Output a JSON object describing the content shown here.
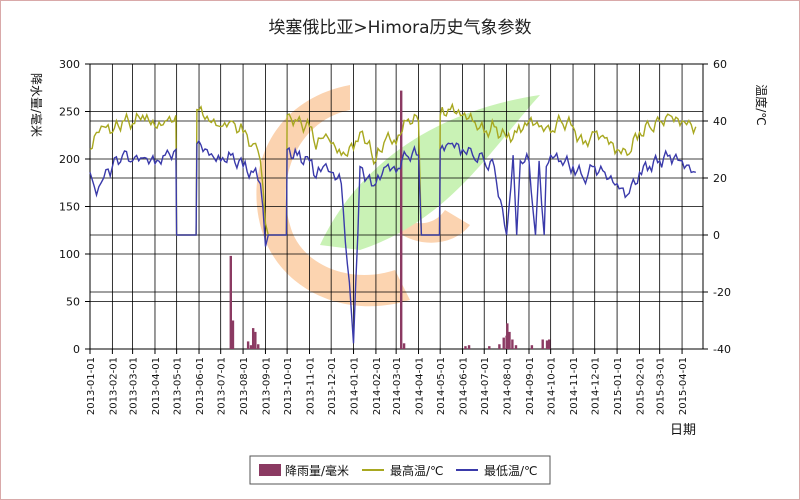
{
  "chart_data": {
    "type": "line",
    "title": "埃塞俄比亚>Himora历史气象参数",
    "xlabel": "日期",
    "ylabel_left": "降水量/毫米",
    "ylabel_right": "温度/℃",
    "ylim_left": [
      0,
      300
    ],
    "ylim_right": [
      -40,
      60
    ],
    "yticks_left": [
      0,
      50,
      100,
      150,
      200,
      250,
      300
    ],
    "yticks_right": [
      -40,
      -20,
      0,
      20,
      40,
      60
    ],
    "grid": true,
    "legend_position": "bottom",
    "x_ticks": [
      "2013-01-01",
      "2013-02-01",
      "2013-03-01",
      "2013-04-01",
      "2013-05-01",
      "2013-06-01",
      "2013-07-01",
      "2013-08-01",
      "2013-09-01",
      "2013-10-01",
      "2013-11-01",
      "2013-12-01",
      "2014-01-01",
      "2014-02-01",
      "2014-03-01",
      "2014-04-01",
      "2014-05-01",
      "2014-06-01",
      "2014-07-01",
      "2014-08-01",
      "2014-09-01",
      "2014-10-01",
      "2014-11-01",
      "2014-12-01",
      "2015-01-01",
      "2015-02-01",
      "2015-03-01",
      "2015-04-01"
    ],
    "series": [
      {
        "name": "降雨量/毫米",
        "axis": "left",
        "color": "#8b3a62",
        "kind": "bar",
        "points": [
          [
            "2013-07-15",
            98
          ],
          [
            "2013-07-18",
            30
          ],
          [
            "2013-08-08",
            8
          ],
          [
            "2013-08-12",
            4
          ],
          [
            "2013-08-15",
            22
          ],
          [
            "2013-08-18",
            18
          ],
          [
            "2013-08-22",
            5
          ],
          [
            "2014-03-08",
            272
          ],
          [
            "2014-03-12",
            6
          ],
          [
            "2014-06-05",
            3
          ],
          [
            "2014-06-10",
            4
          ],
          [
            "2014-07-08",
            3
          ],
          [
            "2014-07-22",
            5
          ],
          [
            "2014-07-28",
            12
          ],
          [
            "2014-08-01",
            14
          ],
          [
            "2014-08-02",
            27
          ],
          [
            "2014-08-05",
            18
          ],
          [
            "2014-08-09",
            10
          ],
          [
            "2014-08-14",
            4
          ],
          [
            "2014-09-05",
            4
          ],
          [
            "2014-09-20",
            10
          ],
          [
            "2014-09-26",
            9
          ],
          [
            "2014-09-29",
            10
          ]
        ]
      },
      {
        "name": "最高温/℃",
        "axis": "right",
        "color": "#a8a820",
        "kind": "line",
        "points": [
          [
            "2013-01-01",
            30
          ],
          [
            "2013-01-10",
            36
          ],
          [
            "2013-01-20",
            38
          ],
          [
            "2013-02-01",
            36
          ],
          [
            "2013-02-15",
            40
          ],
          [
            "2013-03-01",
            39
          ],
          [
            "2013-03-15",
            42
          ],
          [
            "2013-04-01",
            38
          ],
          [
            "2013-04-15",
            40
          ],
          [
            "2013-04-30",
            42
          ],
          [
            "2013-05-01",
            0
          ],
          [
            "2013-05-28",
            0
          ],
          [
            "2013-05-29",
            44
          ],
          [
            "2013-06-15",
            40
          ],
          [
            "2013-07-01",
            38
          ],
          [
            "2013-07-15",
            40
          ],
          [
            "2013-08-01",
            36
          ],
          [
            "2013-08-15",
            32
          ],
          [
            "2013-08-25",
            26
          ],
          [
            "2013-09-01",
            4
          ],
          [
            "2013-09-05",
            0
          ],
          [
            "2013-09-30",
            0
          ],
          [
            "2013-10-01",
            42
          ],
          [
            "2013-10-15",
            40
          ],
          [
            "2013-11-01",
            38
          ],
          [
            "2013-11-10",
            30
          ],
          [
            "2013-11-20",
            34
          ],
          [
            "2013-12-01",
            32
          ],
          [
            "2013-12-15",
            28
          ],
          [
            "2014-01-01",
            30
          ],
          [
            "2014-01-10",
            36
          ],
          [
            "2014-01-20",
            32
          ],
          [
            "2014-02-01",
            26
          ],
          [
            "2014-02-15",
            34
          ],
          [
            "2014-03-01",
            32
          ],
          [
            "2014-03-15",
            40
          ],
          [
            "2014-04-01",
            40
          ],
          [
            "2014-04-05",
            0
          ],
          [
            "2014-04-30",
            0
          ],
          [
            "2014-05-01",
            42
          ],
          [
            "2014-05-15",
            44
          ],
          [
            "2014-06-01",
            42
          ],
          [
            "2014-06-15",
            40
          ],
          [
            "2014-07-01",
            36
          ],
          [
            "2014-07-15",
            38
          ],
          [
            "2014-08-01",
            34
          ],
          [
            "2014-08-15",
            36
          ],
          [
            "2014-09-01",
            40
          ],
          [
            "2014-09-15",
            38
          ],
          [
            "2014-10-01",
            36
          ],
          [
            "2014-10-15",
            40
          ],
          [
            "2014-11-01",
            38
          ],
          [
            "2014-11-15",
            32
          ],
          [
            "2014-12-01",
            36
          ],
          [
            "2014-12-15",
            34
          ],
          [
            "2015-01-01",
            30
          ],
          [
            "2015-01-15",
            28
          ],
          [
            "2015-02-01",
            36
          ],
          [
            "2015-02-15",
            38
          ],
          [
            "2015-03-01",
            40
          ],
          [
            "2015-03-15",
            42
          ],
          [
            "2015-04-01",
            40
          ],
          [
            "2015-04-20",
            38
          ]
        ]
      },
      {
        "name": "最低温/℃",
        "axis": "right",
        "color": "#3a3aaa",
        "kind": "line",
        "points": [
          [
            "2013-01-01",
            22
          ],
          [
            "2013-01-10",
            14
          ],
          [
            "2013-01-20",
            20
          ],
          [
            "2013-02-01",
            24
          ],
          [
            "2013-02-15",
            28
          ],
          [
            "2013-03-01",
            26
          ],
          [
            "2013-03-15",
            27
          ],
          [
            "2013-04-01",
            25
          ],
          [
            "2013-04-15",
            28
          ],
          [
            "2013-04-30",
            30
          ],
          [
            "2013-05-01",
            0
          ],
          [
            "2013-05-28",
            0
          ],
          [
            "2013-05-29",
            32
          ],
          [
            "2013-06-15",
            28
          ],
          [
            "2013-07-01",
            26
          ],
          [
            "2013-07-15",
            28
          ],
          [
            "2013-08-01",
            24
          ],
          [
            "2013-08-15",
            22
          ],
          [
            "2013-08-25",
            18
          ],
          [
            "2013-09-01",
            -4
          ],
          [
            "2013-09-05",
            0
          ],
          [
            "2013-09-30",
            0
          ],
          [
            "2013-10-01",
            30
          ],
          [
            "2013-10-15",
            28
          ],
          [
            "2013-11-01",
            26
          ],
          [
            "2013-11-10",
            20
          ],
          [
            "2013-11-20",
            24
          ],
          [
            "2013-12-01",
            22
          ],
          [
            "2013-12-15",
            18
          ],
          [
            "2014-01-01",
            -38
          ],
          [
            "2014-01-10",
            24
          ],
          [
            "2014-01-20",
            20
          ],
          [
            "2014-02-01",
            18
          ],
          [
            "2014-02-15",
            24
          ],
          [
            "2014-03-01",
            22
          ],
          [
            "2014-03-15",
            28
          ],
          [
            "2014-04-01",
            28
          ],
          [
            "2014-04-05",
            0
          ],
          [
            "2014-04-30",
            0
          ],
          [
            "2014-05-01",
            30
          ],
          [
            "2014-05-15",
            32
          ],
          [
            "2014-06-01",
            30
          ],
          [
            "2014-06-15",
            28
          ],
          [
            "2014-07-01",
            26
          ],
          [
            "2014-07-15",
            24
          ],
          [
            "2014-08-01",
            0
          ],
          [
            "2014-08-10",
            28
          ],
          [
            "2014-08-15",
            0
          ],
          [
            "2014-08-20",
            26
          ],
          [
            "2014-09-01",
            26
          ],
          [
            "2014-09-10",
            0
          ],
          [
            "2014-09-15",
            26
          ],
          [
            "2014-09-22",
            0
          ],
          [
            "2014-09-25",
            24
          ],
          [
            "2014-10-01",
            28
          ],
          [
            "2014-10-15",
            26
          ],
          [
            "2014-11-01",
            24
          ],
          [
            "2014-11-15",
            20
          ],
          [
            "2014-12-01",
            24
          ],
          [
            "2014-12-15",
            22
          ],
          [
            "2015-01-01",
            18
          ],
          [
            "2015-01-15",
            14
          ],
          [
            "2015-02-01",
            22
          ],
          [
            "2015-02-15",
            24
          ],
          [
            "2015-03-01",
            26
          ],
          [
            "2015-03-15",
            28
          ],
          [
            "2015-04-01",
            26
          ],
          [
            "2015-04-20",
            22
          ]
        ]
      }
    ]
  }
}
